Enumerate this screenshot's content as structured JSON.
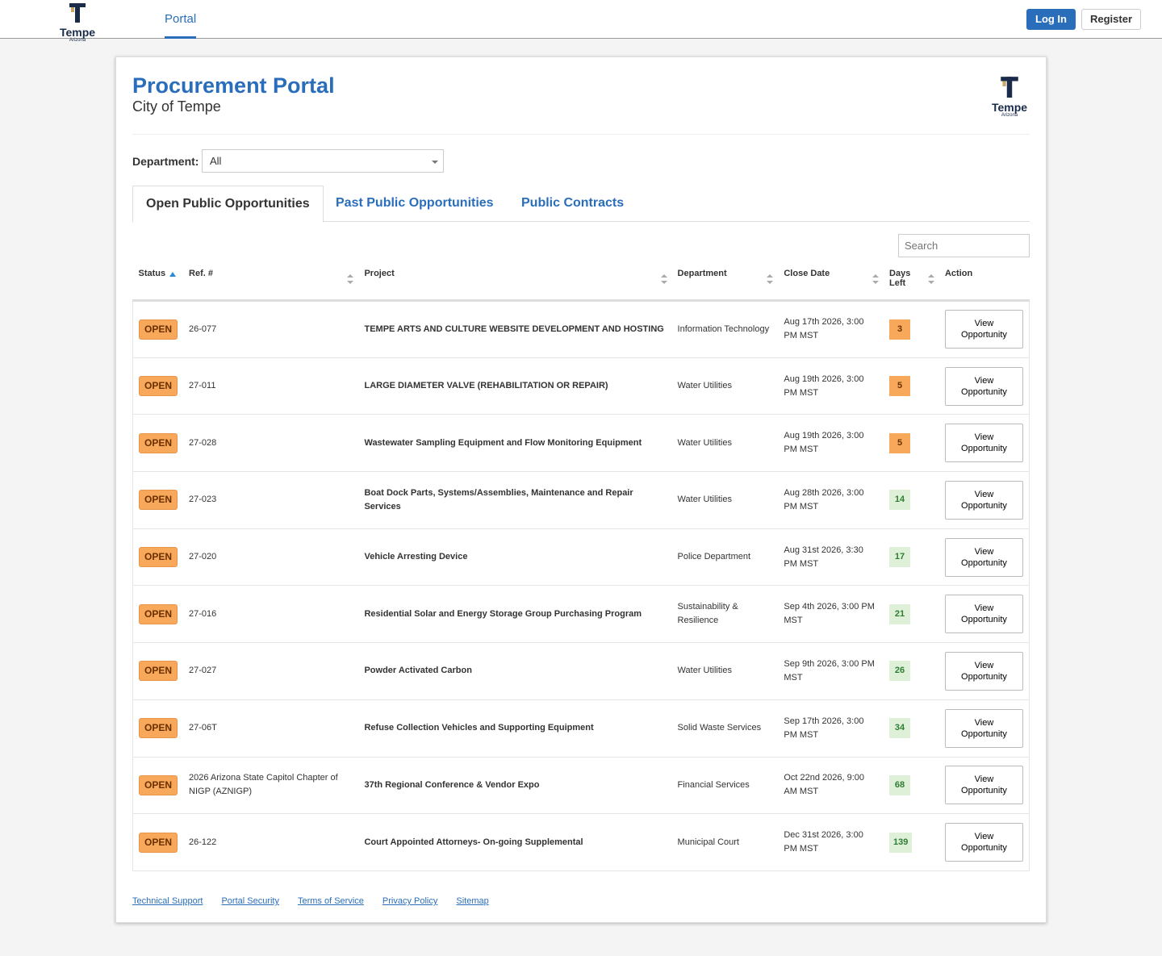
{
  "nav": {
    "logo_name": "Tempe",
    "logo_sub": "Arizona",
    "tab": "Portal",
    "login": "Log In",
    "register": "Register"
  },
  "header": {
    "title": "Procurement Portal",
    "subtitle": "City of Tempe",
    "logo_name": "Tempe",
    "logo_sub": "Arizona"
  },
  "filter": {
    "label": "Department:",
    "value": "All"
  },
  "tabs": [
    "Open Public Opportunities",
    "Past Public Opportunities",
    "Public Contracts"
  ],
  "search_placeholder": "Search",
  "table": {
    "columns": [
      "Status",
      "Ref. #",
      "Project",
      "Department",
      "Close Date",
      "Days Left",
      "Action"
    ],
    "rows": [
      [
        "OPEN",
        "26-077",
        "TEMPE ARTS AND CULTURE WEBSITE DEVELOPMENT AND HOSTING",
        "Information Technology",
        "Aug 17th 2026, 3:00 PM MST",
        3,
        "View Opportunity"
      ],
      [
        "OPEN",
        "27-011",
        "LARGE DIAMETER VALVE (REHABILITATION OR REPAIR)",
        "Water Utilities",
        "Aug 19th 2026, 3:00 PM MST",
        5,
        "View Opportunity"
      ],
      [
        "OPEN",
        "27-028",
        "Wastewater Sampling Equipment and Flow Monitoring Equipment",
        "Water Utilities",
        "Aug 19th 2026, 3:00 PM MST",
        5,
        "View Opportunity"
      ],
      [
        "OPEN",
        "27-023",
        "Boat Dock Parts, Systems/Assemblies, Maintenance and Repair Services",
        "Water Utilities",
        "Aug 28th 2026, 3:00 PM MST",
        14,
        "View Opportunity"
      ],
      [
        "OPEN",
        "27-020",
        "Vehicle Arresting Device",
        "Police Department",
        "Aug 31st 2026, 3:30 PM MST",
        17,
        "View Opportunity"
      ],
      [
        "OPEN",
        "27-016",
        "Residential Solar and Energy Storage Group Purchasing Program",
        "Sustainability & Resilience",
        "Sep 4th 2026, 3:00 PM MST",
        21,
        "View Opportunity"
      ],
      [
        "OPEN",
        "27-027",
        "Powder Activated Carbon",
        "Water Utilities",
        "Sep 9th 2026, 3:00 PM MST",
        26,
        "View Opportunity"
      ],
      [
        "OPEN",
        "27-06T",
        "Refuse Collection Vehicles and Supporting Equipment",
        "Solid Waste Services",
        "Sep 17th 2026, 3:00 PM MST",
        34,
        "View Opportunity"
      ],
      [
        "OPEN",
        "2026 Arizona State Capitol Chapter of NIGP (AZNIGP)",
        "37th Regional Conference & Vendor Expo",
        "Financial Services",
        "Oct 22nd 2026, 9:00 AM MST",
        68,
        "View Opportunity"
      ],
      [
        "OPEN",
        "26-122",
        "Court Appointed Attorneys- On-going Supplemental",
        "Municipal Court",
        "Dec 31st 2026, 3:00 PM MST",
        139,
        "View Opportunity"
      ]
    ]
  },
  "footer": {
    "links": [
      "Technical Support",
      "Portal Security",
      "Terms of Service",
      "Privacy Policy",
      "Sitemap"
    ]
  }
}
